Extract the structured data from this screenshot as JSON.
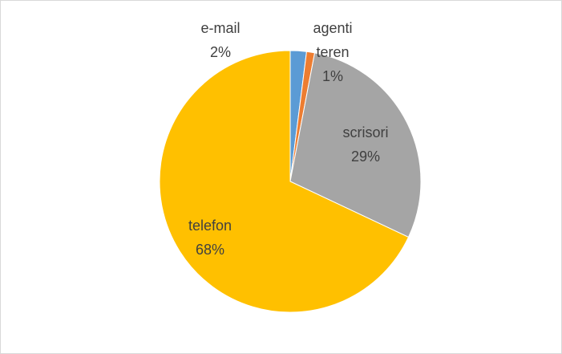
{
  "chart_data": {
    "type": "pie",
    "categories": [
      "e-mail",
      "agenti teren",
      "scrisori",
      "telefon"
    ],
    "values": [
      2,
      1,
      29,
      68
    ],
    "value_labels": [
      "2%",
      "1%",
      "29%",
      "68%"
    ],
    "colors": [
      "#5b9bd5",
      "#ed7d31",
      "#a5a5a5",
      "#ffc000"
    ]
  }
}
